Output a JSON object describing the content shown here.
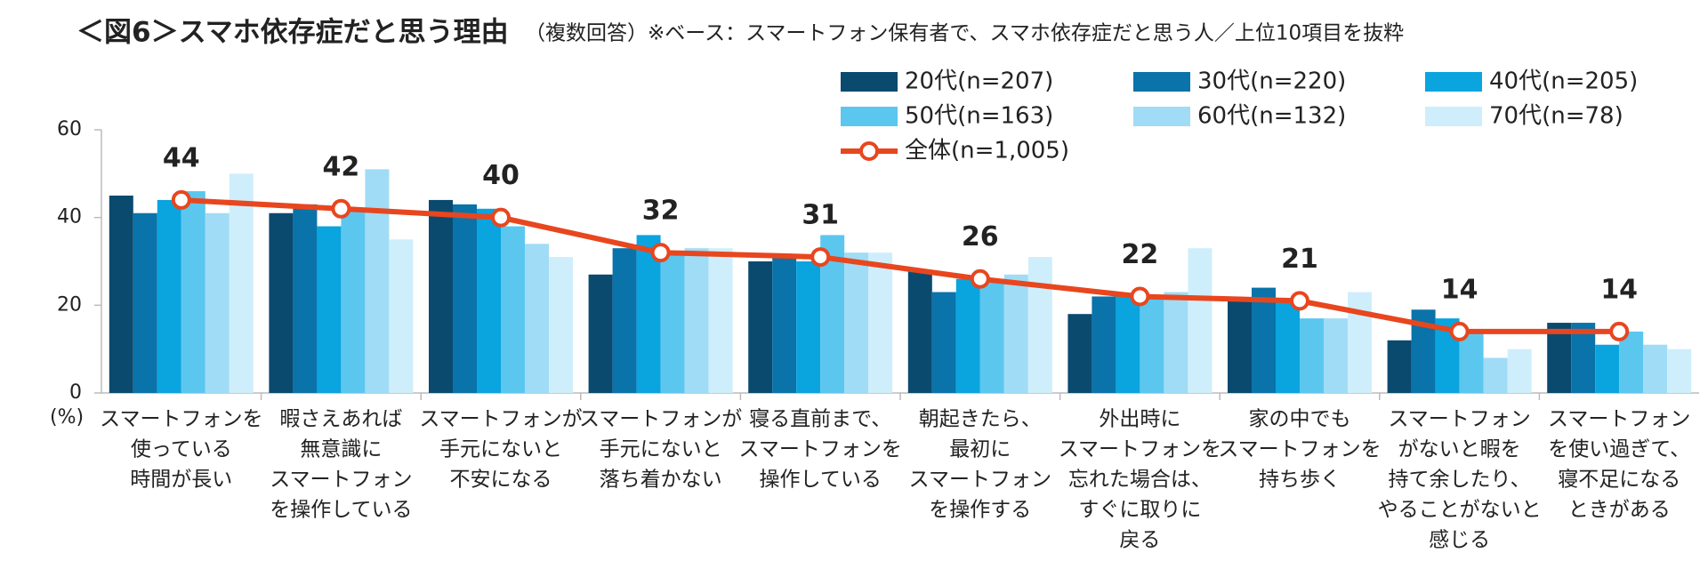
{
  "chart_data": {
    "type": "bar",
    "title": "＜図6＞スマホ依存症だと思う理由",
    "subtitle": "（複数回答）※ベース：スマートフォン保有者で、スマホ依存症だと思う人／上位10項目を抜粋",
    "y_label": "(%)",
    "categories": [
      [
        "スマートフォンを",
        "使っている",
        "時間が長い"
      ],
      [
        "暇さえあれば",
        "無意識に",
        "スマートフォン",
        "を操作している"
      ],
      [
        "スマートフォンが",
        "手元にないと",
        "不安になる"
      ],
      [
        "スマートフォンが",
        "手元にないと",
        "落ち着かない"
      ],
      [
        "寝る直前まで、",
        "スマートフォンを",
        "操作している"
      ],
      [
        "朝起きたら、",
        "最初に",
        "スマートフォン",
        "を操作する"
      ],
      [
        "外出時に",
        "スマートフォンを",
        "忘れた場合は、",
        "すぐに取りに",
        "戻る"
      ],
      [
        "家の中でも",
        "スマートフォンを",
        "持ち歩く"
      ],
      [
        "スマートフォン",
        "がないと暇を",
        "持て余したり、",
        "やることがないと",
        "感じる"
      ],
      [
        "スマートフォン",
        "を使い過ぎて、",
        "寝不足になる",
        "ときがある"
      ]
    ],
    "series": [
      {
        "name": "20代(n=207)",
        "color": "#0b4a6f",
        "values": [
          45,
          41,
          44,
          27,
          30,
          28,
          18,
          21,
          12,
          16
        ]
      },
      {
        "name": "30代(n=220)",
        "color": "#0a73a9",
        "values": [
          41,
          43,
          43,
          33,
          31,
          23,
          22,
          24,
          19,
          16
        ]
      },
      {
        "name": "40代(n=205)",
        "color": "#0aa4df",
        "values": [
          44,
          38,
          42,
          36,
          30,
          26,
          22,
          21,
          17,
          11
        ]
      },
      {
        "name": "50代(n=163)",
        "color": "#5bc7ef",
        "values": [
          46,
          42,
          38,
          32,
          36,
          26,
          22,
          17,
          14,
          14
        ]
      },
      {
        "name": "60代(n=132)",
        "color": "#a0dcf5",
        "values": [
          41,
          51,
          34,
          33,
          32,
          27,
          23,
          17,
          8,
          11
        ]
      },
      {
        "name": "70代(n=78)",
        "color": "#cfeefb",
        "values": [
          50,
          35,
          31,
          33,
          32,
          31,
          33,
          23,
          10,
          10
        ]
      },
      {
        "name": "全体(n=1,005)",
        "color": "#e8461e",
        "type": "line",
        "values": [
          44,
          42,
          40,
          32,
          31,
          26,
          22,
          21,
          14,
          14
        ]
      }
    ],
    "ylim": [
      0,
      60
    ],
    "yticks": [
      0,
      20,
      40,
      60
    ],
    "grid": false
  }
}
